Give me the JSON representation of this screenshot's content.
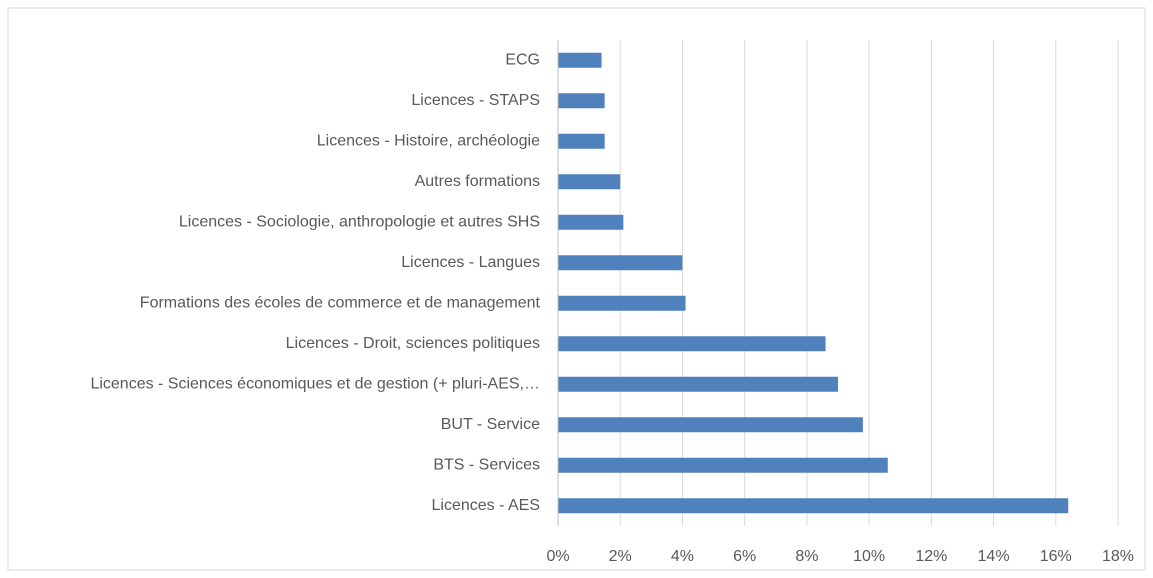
{
  "chart_data": {
    "type": "bar",
    "orientation": "horizontal",
    "categories": [
      "ECG",
      "Licences - STAPS",
      "Licences - Histoire, archéologie",
      "Autres formations",
      "Licences - Sociologie, anthropologie et autres SHS",
      "Licences - Langues",
      "Formations des écoles de commerce et de management",
      "Licences - Droit, sciences politiques",
      "Licences - Sciences économiques et de gestion (+ pluri-AES,…",
      "BUT - Service",
      "BTS - Services",
      "Licences - AES"
    ],
    "values": [
      1.4,
      1.5,
      1.5,
      2.0,
      2.1,
      4.0,
      4.1,
      8.6,
      9.0,
      9.8,
      10.6,
      16.4
    ],
    "color": "#4f81bd",
    "xlim": [
      0,
      18
    ],
    "xticks": [
      {
        "value": 0,
        "label": "0%"
      },
      {
        "value": 2,
        "label": "2%"
      },
      {
        "value": 4,
        "label": "4%"
      },
      {
        "value": 6,
        "label": "6%"
      },
      {
        "value": 8,
        "label": "8%"
      },
      {
        "value": 10,
        "label": "10%"
      },
      {
        "value": 12,
        "label": "12%"
      },
      {
        "value": 14,
        "label": "14%"
      },
      {
        "value": 16,
        "label": "16%"
      },
      {
        "value": 18,
        "label": "18%"
      }
    ],
    "grid": true
  }
}
